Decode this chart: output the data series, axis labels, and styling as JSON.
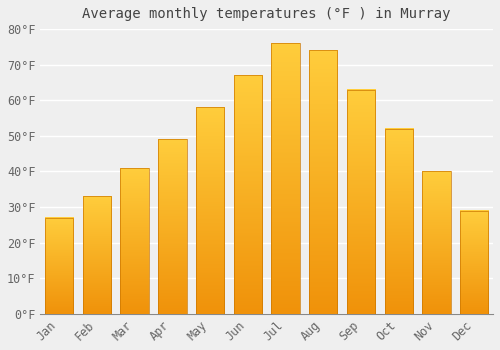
{
  "title": "Average monthly temperatures (°F ) in Murray",
  "months": [
    "Jan",
    "Feb",
    "Mar",
    "Apr",
    "May",
    "Jun",
    "Jul",
    "Aug",
    "Sep",
    "Oct",
    "Nov",
    "Dec"
  ],
  "values": [
    27,
    33,
    41,
    49,
    58,
    67,
    76,
    74,
    63,
    52,
    40,
    29
  ],
  "bar_color": "#FFA500",
  "bar_edge_color": "#CC7700",
  "ylim": [
    0,
    80
  ],
  "yticks": [
    0,
    10,
    20,
    30,
    40,
    50,
    60,
    70,
    80
  ],
  "ytick_labels": [
    "0°F",
    "10°F",
    "20°F",
    "30°F",
    "40°F",
    "50°F",
    "60°F",
    "70°F",
    "80°F"
  ],
  "background_color": "#EFEFEF",
  "plot_bg_color": "#EFEFEF",
  "grid_color": "#FFFFFF",
  "title_fontsize": 10,
  "tick_fontsize": 8.5,
  "bar_width": 0.75
}
